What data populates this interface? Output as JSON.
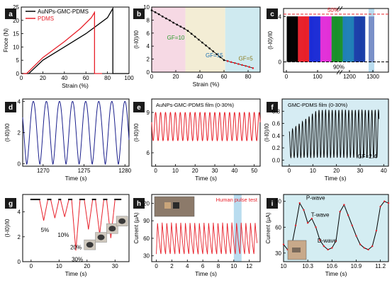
{
  "colors": {
    "black": "#000000",
    "red": "#e8202a",
    "navy": "#1a1f8c",
    "badge": "#1a1a1a",
    "pink_region": "#f6d9e4",
    "beige_region": "#f3edd5",
    "cyan_region": "#cfeaf0",
    "highlight": "#b9dcef",
    "bar_colors": [
      "#000000",
      "#e8202a",
      "#1b2bd6",
      "#e22fd8",
      "#1a8f2a",
      "#1f7fb6",
      "#1a3ea8"
    ]
  },
  "chart_data": [
    {
      "panel": "a",
      "type": "line",
      "xlabel": "Strain (%)",
      "ylabel": "Froce (N)",
      "xlim": [
        0,
        100
      ],
      "ylim": [
        0,
        25
      ],
      "xticks": [
        "0",
        "20",
        "40",
        "60",
        "80",
        "100"
      ],
      "yticks": [
        "0",
        "5",
        "10",
        "15",
        "20",
        "25"
      ],
      "series": [
        {
          "name": "AuNPs-GMC-PDMS",
          "color": "black",
          "x": [
            0,
            7,
            20,
            40,
            60,
            80,
            85,
            85,
            90,
            95,
            100
          ],
          "y": [
            0,
            0,
            5,
            10,
            15,
            21,
            24.5,
            0,
            0,
            0,
            0
          ]
        },
        {
          "name": "PDMS",
          "color": "red",
          "x": [
            0,
            5,
            20,
            40,
            55,
            65,
            68,
            68,
            75
          ],
          "y": [
            0,
            0,
            6,
            12,
            17,
            21,
            23,
            0,
            0
          ]
        }
      ]
    },
    {
      "panel": "b",
      "type": "scatter",
      "xlabel": "Strain (%)",
      "ylabel": "(I-I0)/I0",
      "xlim": [
        0,
        90
      ],
      "ylim": [
        0,
        10
      ],
      "xticks": [
        "0",
        "20",
        "40",
        "60",
        "80"
      ],
      "yticks": [
        "0",
        "2",
        "4",
        "6",
        "8",
        "10"
      ],
      "regions": [
        {
          "x": [
            0,
            28
          ],
          "color": "pink_region"
        },
        {
          "x": [
            28,
            61
          ],
          "color": "beige_region"
        },
        {
          "x": [
            61,
            90
          ],
          "color": "cyan_region"
        }
      ],
      "annotations": [
        {
          "text": "GF=10",
          "color": "#2a9a2a"
        },
        {
          "text": "GF=15",
          "color": "#1a6fb0"
        },
        {
          "text": "GF=5",
          "color": "#8a7a1a"
        }
      ],
      "x": [
        0,
        3,
        6,
        9,
        12,
        15,
        18,
        21,
        24,
        27,
        30,
        33,
        36,
        39,
        42,
        45,
        48,
        51,
        54,
        57,
        60,
        63,
        66,
        69,
        72,
        75,
        78,
        81,
        84
      ],
      "y": [
        9.5,
        9.2,
        8.9,
        8.55,
        8.25,
        7.95,
        7.6,
        7.3,
        7.0,
        6.7,
        6.35,
        5.9,
        5.45,
        5.0,
        4.55,
        4.1,
        3.65,
        3.2,
        2.75,
        2.3,
        1.85,
        1.7,
        1.55,
        1.4,
        1.25,
        1.1,
        0.95,
        0.8,
        0.62
      ]
    },
    {
      "panel": "c",
      "type": "bar",
      "xlabel": "",
      "ylabel": "(I-I0)/I0",
      "xticks": [
        "0",
        "100",
        "1200",
        "1300"
      ],
      "yticks": [
        "0",
        "4"
      ],
      "annotations": [
        {
          "text": "50%",
          "color": "red"
        },
        {
          "text": "90%",
          "color": "black"
        }
      ],
      "cycles": 7,
      "high_level": 4.0,
      "low_level": 0.0
    },
    {
      "panel": "d",
      "type": "line",
      "xlabel": "Time (s)",
      "ylabel": "(I-I0)/I0",
      "xlim": [
        1267.5,
        1280.5
      ],
      "ylim": [
        -0.15,
        4.15
      ],
      "xticks": [
        "1270",
        "1275",
        "1280"
      ],
      "yticks": [
        "0",
        "2",
        "4"
      ],
      "series": [
        {
          "color": "navy",
          "period_s": 1.6,
          "min": -0.02,
          "max": 4.0
        }
      ]
    },
    {
      "panel": "e",
      "type": "line",
      "title": "AuNPs-GMC-PDMS film (0-30%)",
      "xlabel": "Time (s)",
      "ylabel": "(I-I0)/I0",
      "xlim": [
        -2,
        53
      ],
      "ylim": [
        5,
        10
      ],
      "xticks": [
        "0",
        "10",
        "20",
        "30",
        "40",
        "50"
      ],
      "yticks": [
        "6",
        "9"
      ],
      "series": [
        {
          "color": "red",
          "period_s": 2.5,
          "min": 6.9,
          "max": 9.0
        }
      ]
    },
    {
      "panel": "f",
      "type": "line",
      "title": "GMC-PDMS film (0-30%)",
      "xlabel": "Time (s)",
      "ylabel": "(I-I0)/I0",
      "xlim": [
        -3,
        42
      ],
      "ylim": [
        -0.1,
        1.0
      ],
      "xticks": [
        "0",
        "10",
        "20",
        "30",
        "40"
      ],
      "yticks": [
        "0.0",
        "0.2",
        "0.4",
        "0.6",
        "0.8"
      ],
      "annotations": [
        {
          "text": "GF=2.4",
          "color": "black"
        }
      ],
      "series": [
        {
          "color": "black",
          "period_s": 1.4,
          "min": 0.04,
          "max": 0.82
        }
      ]
    },
    {
      "panel": "g",
      "type": "line",
      "xlabel": "Time (s)",
      "ylabel": "(I-I0)/I0",
      "xlim": [
        -3,
        35
      ],
      "ylim": [
        0,
        5.4
      ],
      "xticks": [
        "0",
        "10",
        "20",
        "30"
      ],
      "yticks": [
        "0",
        "2",
        "4"
      ],
      "annotations": [
        {
          "text": "5%",
          "color": "black"
        },
        {
          "text": "10%",
          "color": "black"
        },
        {
          "text": "20%",
          "color": "black"
        },
        {
          "text": "30%",
          "color": "black"
        }
      ],
      "series": [
        {
          "name": "baseline",
          "color": "black",
          "y": 5.0
        },
        {
          "name": "dips",
          "color": "red",
          "x": [
            4.5,
            8.5,
            12,
            16,
            20.5,
            24.5,
            28.5
          ],
          "y": [
            3.3,
            3.5,
            3.6,
            0.9,
            2.6,
            2.2,
            1.9
          ]
        }
      ]
    },
    {
      "panel": "h",
      "type": "line",
      "title": "Human pulse test",
      "xlabel": "Time (s)",
      "ylabel": "Current (µA)",
      "xlim": [
        -0.6,
        13.4
      ],
      "ylim": [
        20,
        135
      ],
      "xticks": [
        "0",
        "2",
        "4",
        "6",
        "8",
        "10",
        "12"
      ],
      "yticks": [
        "30",
        "60",
        "90",
        "120"
      ],
      "highlight_x": [
        10.0,
        11.0
      ],
      "series": [
        {
          "color": "red",
          "period_s": 0.6,
          "min": 33,
          "max": 87
        }
      ]
    },
    {
      "panel": "i",
      "type": "line",
      "xlabel": "Time (s)",
      "ylabel": "Current (µA)",
      "xlim": [
        10.0,
        11.3
      ],
      "ylim": [
        20,
        98
      ],
      "xticks": [
        "10",
        "10.3",
        "10.6",
        "10.9",
        "11.2"
      ],
      "yticks": [
        "30",
        "60",
        "90"
      ],
      "annotations": [
        {
          "text": "P-wave",
          "color": "black"
        },
        {
          "text": "T-wave",
          "color": "black"
        },
        {
          "text": "D-wave",
          "color": "black"
        }
      ],
      "series": [
        {
          "color": "black",
          "marker_color": "red",
          "x": [
            10.0,
            10.05,
            10.1,
            10.15,
            10.2,
            10.25,
            10.3,
            10.35,
            10.4,
            10.45,
            10.5,
            10.55,
            10.6,
            10.65,
            10.7,
            10.75,
            10.8,
            10.85,
            10.9,
            10.95,
            11.0,
            11.05,
            11.1,
            11.15,
            11.2,
            11.25,
            11.3
          ],
          "y": [
            40,
            34,
            38,
            62,
            88,
            80,
            65,
            70,
            60,
            45,
            38,
            34,
            36,
            44,
            78,
            86,
            74,
            62,
            50,
            40,
            36,
            34,
            38,
            56,
            84,
            90,
            88
          ]
        }
      ]
    }
  ],
  "panel_labels": [
    "a",
    "b",
    "c",
    "d",
    "e",
    "f",
    "g",
    "h",
    "i"
  ]
}
